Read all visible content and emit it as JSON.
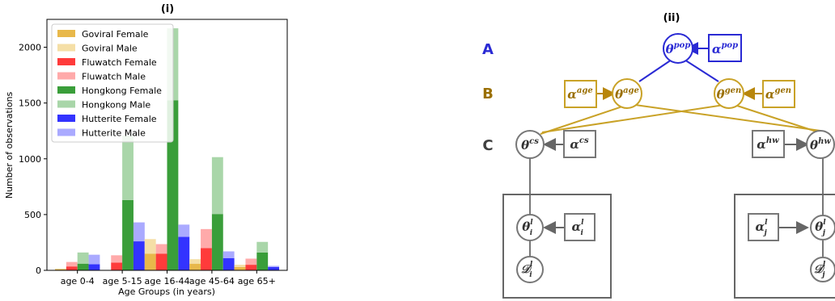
{
  "chart_data": [
    {
      "type": "bar",
      "title": "(i)",
      "xlabel": "Age Groups (in years)",
      "ylabel": "Number of observations",
      "ylim": [
        0,
        2250
      ],
      "yticks": [
        0,
        500,
        1000,
        1500,
        2000
      ],
      "categories": [
        "age 0-4",
        "age 5-15",
        "age 16-44",
        "age 45-64",
        "age 65+"
      ],
      "stacked_pairs": true,
      "legend_position": "top-left",
      "series": [
        {
          "name": "Goviral Female",
          "color": "#e8b84a",
          "values": [
            10,
            0,
            150,
            60,
            30
          ]
        },
        {
          "name": "Goviral Male",
          "color": "#f5dfa6",
          "values": [
            5,
            0,
            130,
            40,
            20
          ]
        },
        {
          "name": "Fluwatch Female",
          "color": "#ff3b3b",
          "values": [
            35,
            70,
            150,
            200,
            50
          ]
        },
        {
          "name": "Fluwatch Male",
          "color": "#ffaaaa",
          "values": [
            40,
            65,
            85,
            170,
            55
          ]
        },
        {
          "name": "Hongkong Female",
          "color": "#3a9e3a",
          "values": [
            60,
            630,
            1525,
            505,
            160
          ]
        },
        {
          "name": "Hongkong Male",
          "color": "#a9d6a9",
          "values": [
            100,
            580,
            645,
            510,
            95
          ]
        },
        {
          "name": "Hutterite Female",
          "color": "#3333ff",
          "values": [
            55,
            260,
            300,
            110,
            30
          ]
        },
        {
          "name": "Hutterite Male",
          "color": "#aaaaff",
          "values": [
            85,
            170,
            110,
            60,
            10
          ]
        }
      ]
    }
  ],
  "diagram": {
    "title": "(ii)",
    "level_labels": [
      "A",
      "B",
      "C"
    ],
    "level_colors": [
      "#2a2ad4",
      "#9a6f00",
      "#404040"
    ],
    "theta_base": "θ",
    "alpha_base": "α",
    "theta_pop_sup": "pop",
    "alpha_pop_sup": "pop",
    "theta_age_sup": "age",
    "alpha_age_sup": "age",
    "theta_gen_sup": "gen",
    "alpha_gen_sup": "gen",
    "theta_cs_sup": "cs",
    "alpha_cs_sup": "cs",
    "theta_hw_sup": "hw",
    "alpha_hw_sup": "hw",
    "plate_sup": "l",
    "sub_i": "i",
    "sub_j": "j",
    "data_base": "𝒟"
  }
}
